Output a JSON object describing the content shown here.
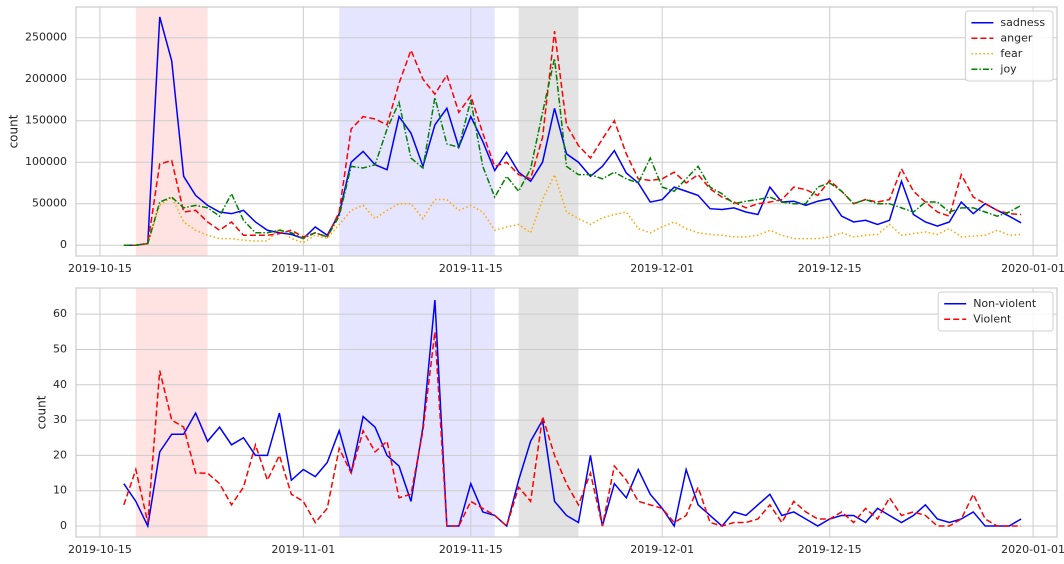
{
  "chart_data": [
    {
      "type": "line",
      "ylabel": "count",
      "x": [
        "2019-10-17",
        "2019-10-18",
        "2019-10-19",
        "2019-10-20",
        "2019-10-21",
        "2019-10-22",
        "2019-10-23",
        "2019-10-24",
        "2019-10-25",
        "2019-10-26",
        "2019-10-27",
        "2019-10-28",
        "2019-10-29",
        "2019-10-30",
        "2019-10-31",
        "2019-11-01",
        "2019-11-02",
        "2019-11-03",
        "2019-11-04",
        "2019-11-05",
        "2019-11-06",
        "2019-11-07",
        "2019-11-08",
        "2019-11-09",
        "2019-11-10",
        "2019-11-11",
        "2019-11-12",
        "2019-11-13",
        "2019-11-14",
        "2019-11-15",
        "2019-11-16",
        "2019-11-17",
        "2019-11-18",
        "2019-11-19",
        "2019-11-20",
        "2019-11-21",
        "2019-11-22",
        "2019-11-23",
        "2019-11-24",
        "2019-11-25",
        "2019-11-26",
        "2019-11-27",
        "2019-11-28",
        "2019-11-29",
        "2019-11-30",
        "2019-12-01",
        "2019-12-02",
        "2019-12-03",
        "2019-12-04",
        "2019-12-05",
        "2019-12-06",
        "2019-12-07",
        "2019-12-08",
        "2019-12-09",
        "2019-12-10",
        "2019-12-11",
        "2019-12-12",
        "2019-12-13",
        "2019-12-14",
        "2019-12-15",
        "2019-12-16",
        "2019-12-17",
        "2019-12-18",
        "2019-12-19",
        "2019-12-20",
        "2019-12-21",
        "2019-12-22",
        "2019-12-23",
        "2019-12-24",
        "2019-12-25",
        "2019-12-26",
        "2019-12-27",
        "2019-12-28",
        "2019-12-29",
        "2019-12-30",
        "2019-12-31"
      ],
      "series": [
        {
          "name": "sadness",
          "color": "#0000ff",
          "linestyle": "solid",
          "values": [
            0,
            0,
            2000,
            275000,
            222000,
            83000,
            60000,
            48000,
            40000,
            38000,
            42000,
            28000,
            18000,
            15000,
            13000,
            8000,
            22000,
            12000,
            38000,
            100000,
            113000,
            97000,
            91000,
            155000,
            135000,
            95000,
            145000,
            165000,
            118000,
            155000,
            125000,
            90000,
            112000,
            88000,
            77000,
            100000,
            165000,
            110000,
            100000,
            83000,
            95000,
            114000,
            87000,
            75000,
            52000,
            55000,
            70000,
            65000,
            60000,
            44000,
            43000,
            45000,
            40000,
            37000,
            70000,
            52000,
            53000,
            48000,
            53000,
            56000,
            35000,
            28000,
            30000,
            25000,
            30000,
            77000,
            37000,
            28000,
            23000,
            28000,
            52000,
            38000,
            50000,
            42000,
            35000,
            27000
          ]
        },
        {
          "name": "anger",
          "color": "#ff0000",
          "linestyle": "dashed",
          "values": [
            0,
            0,
            2000,
            98000,
            102000,
            40000,
            42000,
            28000,
            18000,
            28000,
            12000,
            12000,
            12000,
            14000,
            18000,
            10000,
            15000,
            10000,
            40000,
            140000,
            155000,
            152000,
            145000,
            195000,
            235000,
            200000,
            182000,
            205000,
            160000,
            180000,
            135000,
            95000,
            100000,
            85000,
            80000,
            130000,
            258000,
            145000,
            120000,
            105000,
            128000,
            150000,
            110000,
            80000,
            78000,
            80000,
            88000,
            75000,
            85000,
            68000,
            58000,
            52000,
            45000,
            50000,
            52000,
            55000,
            70000,
            67000,
            60000,
            78000,
            65000,
            50000,
            55000,
            52000,
            55000,
            92000,
            65000,
            52000,
            40000,
            35000,
            85000,
            58000,
            50000,
            42000,
            38000,
            37000
          ]
        },
        {
          "name": "fear",
          "color": "#ffa500",
          "linestyle": "dotted",
          "values": [
            0,
            0,
            2000,
            48000,
            58000,
            28000,
            18000,
            12000,
            8000,
            8000,
            6000,
            5000,
            5000,
            20000,
            8000,
            3000,
            12000,
            8000,
            25000,
            42000,
            48000,
            32000,
            42000,
            50000,
            50000,
            32000,
            55000,
            55000,
            42000,
            48000,
            40000,
            18000,
            22000,
            25000,
            15000,
            55000,
            85000,
            40000,
            32000,
            25000,
            33000,
            37000,
            40000,
            20000,
            15000,
            22000,
            28000,
            20000,
            15000,
            13000,
            12000,
            10000,
            10000,
            12000,
            18000,
            12000,
            8000,
            8000,
            8000,
            10000,
            15000,
            10000,
            12000,
            13000,
            25000,
            12000,
            14000,
            16000,
            13000,
            20000,
            10000,
            11000,
            12000,
            18000,
            12000,
            13000
          ]
        },
        {
          "name": "joy",
          "color": "#008000",
          "linestyle": "dashdot",
          "values": [
            0,
            0,
            2000,
            52000,
            58000,
            45000,
            48000,
            45000,
            35000,
            62000,
            30000,
            15000,
            15000,
            18000,
            15000,
            8000,
            15000,
            10000,
            35000,
            95000,
            93000,
            97000,
            140000,
            172000,
            105000,
            93000,
            178000,
            122000,
            118000,
            175000,
            95000,
            58000,
            83000,
            65000,
            92000,
            160000,
            225000,
            95000,
            85000,
            85000,
            80000,
            88000,
            80000,
            75000,
            105000,
            70000,
            65000,
            80000,
            95000,
            70000,
            62000,
            50000,
            53000,
            55000,
            58000,
            52000,
            50000,
            50000,
            70000,
            75000,
            65000,
            50000,
            55000,
            50000,
            50000,
            45000,
            40000,
            52000,
            52000,
            40000,
            45000,
            45000,
            40000,
            35000,
            40000,
            48000
          ]
        }
      ],
      "spans": [
        {
          "start": "2019-10-18",
          "end": "2019-10-24",
          "color": "#ffe3e3"
        },
        {
          "start": "2019-11-04",
          "end": "2019-11-17",
          "color": "#e5e5ff"
        },
        {
          "start": "2019-11-19",
          "end": "2019-11-24",
          "color": "#e3e3e3"
        }
      ],
      "xlim": [
        "2019-10-13",
        "2020-01-03"
      ],
      "xticks": [
        "2019-10-15",
        "2019-11-01",
        "2019-11-15",
        "2019-12-01",
        "2019-12-15",
        "2020-01-01"
      ],
      "ylim": [
        -13000,
        287000
      ],
      "yticks": [
        0,
        50000,
        100000,
        150000,
        200000,
        250000
      ],
      "grid": true,
      "legend": "upper right"
    },
    {
      "type": "line",
      "ylabel": "count",
      "x": [
        "2019-10-17",
        "2019-10-18",
        "2019-10-19",
        "2019-10-20",
        "2019-10-21",
        "2019-10-22",
        "2019-10-23",
        "2019-10-24",
        "2019-10-25",
        "2019-10-26",
        "2019-10-27",
        "2019-10-28",
        "2019-10-29",
        "2019-10-30",
        "2019-10-31",
        "2019-11-01",
        "2019-11-02",
        "2019-11-03",
        "2019-11-04",
        "2019-11-05",
        "2019-11-06",
        "2019-11-07",
        "2019-11-08",
        "2019-11-09",
        "2019-11-10",
        "2019-11-11",
        "2019-11-12",
        "2019-11-13",
        "2019-11-14",
        "2019-11-15",
        "2019-11-16",
        "2019-11-17",
        "2019-11-18",
        "2019-11-19",
        "2019-11-20",
        "2019-11-21",
        "2019-11-22",
        "2019-11-23",
        "2019-11-24",
        "2019-11-25",
        "2019-11-26",
        "2019-11-27",
        "2019-11-28",
        "2019-11-29",
        "2019-11-30",
        "2019-12-01",
        "2019-12-02",
        "2019-12-03",
        "2019-12-04",
        "2019-12-05",
        "2019-12-06",
        "2019-12-07",
        "2019-12-08",
        "2019-12-09",
        "2019-12-10",
        "2019-12-11",
        "2019-12-12",
        "2019-12-13",
        "2019-12-14",
        "2019-12-15",
        "2019-12-16",
        "2019-12-17",
        "2019-12-18",
        "2019-12-19",
        "2019-12-20",
        "2019-12-21",
        "2019-12-22",
        "2019-12-23",
        "2019-12-24",
        "2019-12-25",
        "2019-12-26",
        "2019-12-27",
        "2019-12-28",
        "2019-12-29",
        "2019-12-30",
        "2019-12-31"
      ],
      "series": [
        {
          "name": "Non-violent",
          "color": "#0000ff",
          "linestyle": "solid",
          "values": [
            12,
            7,
            0,
            21,
            26,
            26,
            32,
            24,
            28,
            23,
            25,
            20,
            20,
            32,
            13,
            16,
            14,
            18,
            27,
            15,
            31,
            28,
            20,
            17,
            7,
            28,
            64,
            0,
            0,
            12,
            4,
            3,
            0,
            13,
            24,
            30,
            7,
            3,
            1,
            20,
            0,
            12,
            8,
            16,
            9,
            5,
            0,
            16,
            6,
            3,
            0,
            4,
            3,
            6,
            9,
            3,
            4,
            2,
            0,
            2,
            3,
            3,
            1,
            5,
            3,
            1,
            3,
            6,
            2,
            1,
            2,
            4,
            0,
            0,
            0,
            2
          ]
        },
        {
          "name": "Violent",
          "color": "#ff0000",
          "linestyle": "dashed",
          "values": [
            6,
            16,
            1,
            44,
            30,
            28,
            15,
            15,
            12,
            6,
            11,
            23,
            13,
            20,
            9,
            7,
            1,
            5,
            22,
            15,
            27,
            21,
            24,
            8,
            9,
            27,
            55,
            0,
            0,
            7,
            5,
            3,
            0,
            11,
            7,
            31,
            20,
            12,
            6,
            15,
            0,
            17,
            13,
            7,
            6,
            5,
            1,
            3,
            11,
            1,
            0,
            1,
            1,
            2,
            6,
            1,
            7,
            4,
            2,
            2,
            4,
            1,
            5,
            2,
            8,
            3,
            4,
            3,
            0,
            0,
            2,
            9,
            2,
            0,
            0,
            0
          ]
        }
      ],
      "spans": [
        {
          "start": "2019-10-18",
          "end": "2019-10-24",
          "color": "#ffe3e3"
        },
        {
          "start": "2019-11-04",
          "end": "2019-11-17",
          "color": "#e5e5ff"
        },
        {
          "start": "2019-11-19",
          "end": "2019-11-24",
          "color": "#e3e3e3"
        }
      ],
      "xlim": [
        "2019-10-13",
        "2020-01-03"
      ],
      "xticks": [
        "2019-10-15",
        "2019-11-01",
        "2019-11-15",
        "2019-12-01",
        "2019-12-15",
        "2020-01-01"
      ],
      "ylim": [
        -3.1,
        67.4
      ],
      "yticks": [
        0,
        10,
        20,
        30,
        40,
        50,
        60
      ],
      "grid": true,
      "legend": "upper right"
    }
  ]
}
